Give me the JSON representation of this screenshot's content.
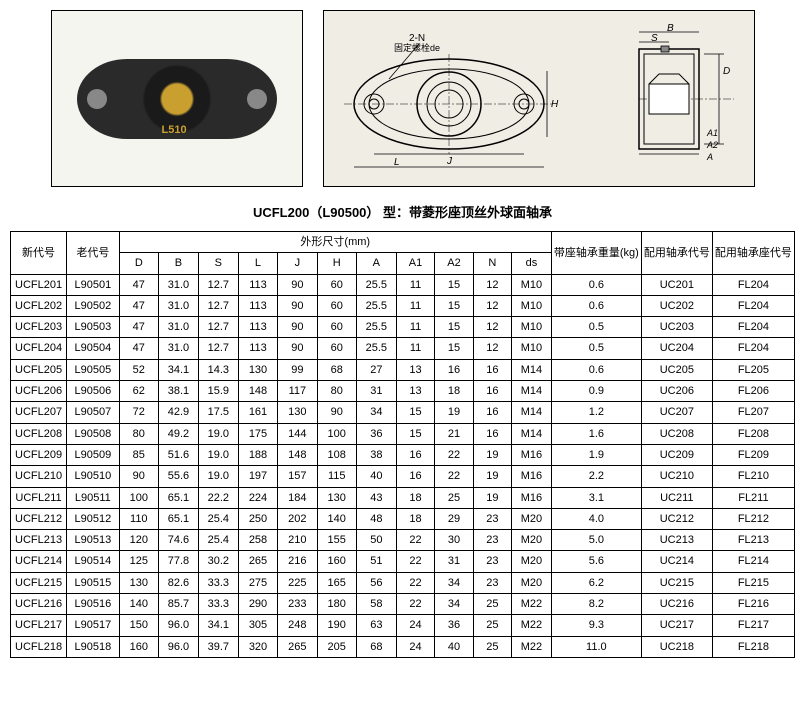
{
  "title": "UCFL200（L90500） 型：带菱形座顶丝外球面轴承",
  "photo_label": "L510",
  "diagram_labels": {
    "top_left": "2-N",
    "top_left2": "固定螺栓de",
    "J": "J",
    "L": "L",
    "H": "H",
    "B": "B",
    "S": "S",
    "D": "D",
    "A1": "A1",
    "A2": "A2",
    "A": "A"
  },
  "headers": {
    "new_code": "新代号",
    "old_code": "老代号",
    "dims_group": "外形尺寸(mm)",
    "D": "D",
    "B": "B",
    "S": "S",
    "L": "L",
    "J": "J",
    "H": "H",
    "A": "A",
    "A1": "A1",
    "A2": "A2",
    "N": "N",
    "ds": "ds",
    "weight": "带座轴承重量(kg)",
    "bearing_code": "配用轴承代号",
    "seat_code": "配用轴承座代号"
  },
  "rows": [
    {
      "new": "UCFL201",
      "old": "L90501",
      "D": "47",
      "B": "31.0",
      "S": "12.7",
      "L": "113",
      "J": "90",
      "H": "60",
      "A": "25.5",
      "A1": "11",
      "A2": "15",
      "N": "12",
      "ds": "M10",
      "wt": "0.6",
      "bear": "UC201",
      "seat": "FL204"
    },
    {
      "new": "UCFL202",
      "old": "L90502",
      "D": "47",
      "B": "31.0",
      "S": "12.7",
      "L": "113",
      "J": "90",
      "H": "60",
      "A": "25.5",
      "A1": "11",
      "A2": "15",
      "N": "12",
      "ds": "M10",
      "wt": "0.6",
      "bear": "UC202",
      "seat": "FL204"
    },
    {
      "new": "UCFL203",
      "old": "L90503",
      "D": "47",
      "B": "31.0",
      "S": "12.7",
      "L": "113",
      "J": "90",
      "H": "60",
      "A": "25.5",
      "A1": "11",
      "A2": "15",
      "N": "12",
      "ds": "M10",
      "wt": "0.5",
      "bear": "UC203",
      "seat": "FL204"
    },
    {
      "new": "UCFL204",
      "old": "L90504",
      "D": "47",
      "B": "31.0",
      "S": "12.7",
      "L": "113",
      "J": "90",
      "H": "60",
      "A": "25.5",
      "A1": "11",
      "A2": "15",
      "N": "12",
      "ds": "M10",
      "wt": "0.5",
      "bear": "UC204",
      "seat": "FL204"
    },
    {
      "new": "UCFL205",
      "old": "L90505",
      "D": "52",
      "B": "34.1",
      "S": "14.3",
      "L": "130",
      "J": "99",
      "H": "68",
      "A": "27",
      "A1": "13",
      "A2": "16",
      "N": "16",
      "ds": "M14",
      "wt": "0.6",
      "bear": "UC205",
      "seat": "FL205"
    },
    {
      "new": "UCFL206",
      "old": "L90506",
      "D": "62",
      "B": "38.1",
      "S": "15.9",
      "L": "148",
      "J": "117",
      "H": "80",
      "A": "31",
      "A1": "13",
      "A2": "18",
      "N": "16",
      "ds": "M14",
      "wt": "0.9",
      "bear": "UC206",
      "seat": "FL206"
    },
    {
      "new": "UCFL207",
      "old": "L90507",
      "D": "72",
      "B": "42.9",
      "S": "17.5",
      "L": "161",
      "J": "130",
      "H": "90",
      "A": "34",
      "A1": "15",
      "A2": "19",
      "N": "16",
      "ds": "M14",
      "wt": "1.2",
      "bear": "UC207",
      "seat": "FL207"
    },
    {
      "new": "UCFL208",
      "old": "L90508",
      "D": "80",
      "B": "49.2",
      "S": "19.0",
      "L": "175",
      "J": "144",
      "H": "100",
      "A": "36",
      "A1": "15",
      "A2": "21",
      "N": "16",
      "ds": "M14",
      "wt": "1.6",
      "bear": "UC208",
      "seat": "FL208"
    },
    {
      "new": "UCFL209",
      "old": "L90509",
      "D": "85",
      "B": "51.6",
      "S": "19.0",
      "L": "188",
      "J": "148",
      "H": "108",
      "A": "38",
      "A1": "16",
      "A2": "22",
      "N": "19",
      "ds": "M16",
      "wt": "1.9",
      "bear": "UC209",
      "seat": "FL209"
    },
    {
      "new": "UCFL210",
      "old": "L90510",
      "D": "90",
      "B": "55.6",
      "S": "19.0",
      "L": "197",
      "J": "157",
      "H": "115",
      "A": "40",
      "A1": "16",
      "A2": "22",
      "N": "19",
      "ds": "M16",
      "wt": "2.2",
      "bear": "UC210",
      "seat": "FL210"
    },
    {
      "new": "UCFL211",
      "old": "L90511",
      "D": "100",
      "B": "65.1",
      "S": "22.2",
      "L": "224",
      "J": "184",
      "H": "130",
      "A": "43",
      "A1": "18",
      "A2": "25",
      "N": "19",
      "ds": "M16",
      "wt": "3.1",
      "bear": "UC211",
      "seat": "FL211"
    },
    {
      "new": "UCFL212",
      "old": "L90512",
      "D": "110",
      "B": "65.1",
      "S": "25.4",
      "L": "250",
      "J": "202",
      "H": "140",
      "A": "48",
      "A1": "18",
      "A2": "29",
      "N": "23",
      "ds": "M20",
      "wt": "4.0",
      "bear": "UC212",
      "seat": "FL212"
    },
    {
      "new": "UCFL213",
      "old": "L90513",
      "D": "120",
      "B": "74.6",
      "S": "25.4",
      "L": "258",
      "J": "210",
      "H": "155",
      "A": "50",
      "A1": "22",
      "A2": "30",
      "N": "23",
      "ds": "M20",
      "wt": "5.0",
      "bear": "UC213",
      "seat": "FL213"
    },
    {
      "new": "UCFL214",
      "old": "L90514",
      "D": "125",
      "B": "77.8",
      "S": "30.2",
      "L": "265",
      "J": "216",
      "H": "160",
      "A": "51",
      "A1": "22",
      "A2": "31",
      "N": "23",
      "ds": "M20",
      "wt": "5.6",
      "bear": "UC214",
      "seat": "FL214"
    },
    {
      "new": "UCFL215",
      "old": "L90515",
      "D": "130",
      "B": "82.6",
      "S": "33.3",
      "L": "275",
      "J": "225",
      "H": "165",
      "A": "56",
      "A1": "22",
      "A2": "34",
      "N": "23",
      "ds": "M20",
      "wt": "6.2",
      "bear": "UC215",
      "seat": "FL215"
    },
    {
      "new": "UCFL216",
      "old": "L90516",
      "D": "140",
      "B": "85.7",
      "S": "33.3",
      "L": "290",
      "J": "233",
      "H": "180",
      "A": "58",
      "A1": "22",
      "A2": "34",
      "N": "25",
      "ds": "M22",
      "wt": "8.2",
      "bear": "UC216",
      "seat": "FL216"
    },
    {
      "new": "UCFL217",
      "old": "L90517",
      "D": "150",
      "B": "96.0",
      "S": "34.1",
      "L": "305",
      "J": "248",
      "H": "190",
      "A": "63",
      "A1": "24",
      "A2": "36",
      "N": "25",
      "ds": "M22",
      "wt": "9.3",
      "bear": "UC217",
      "seat": "FL217"
    },
    {
      "new": "UCFL218",
      "old": "L90518",
      "D": "160",
      "B": "96.0",
      "S": "39.7",
      "L": "320",
      "J": "265",
      "H": "205",
      "A": "68",
      "A1": "24",
      "A2": "40",
      "N": "25",
      "ds": "M22",
      "wt": "11.0",
      "bear": "UC218",
      "seat": "FL218"
    }
  ],
  "colors": {
    "border": "#000000",
    "bg": "#ffffff",
    "photo_bg": "#f5f5f0",
    "diagram_bg": "#f0ede5",
    "bearing_dark": "#2a2a2a",
    "bearing_gold": "#c9a030"
  }
}
